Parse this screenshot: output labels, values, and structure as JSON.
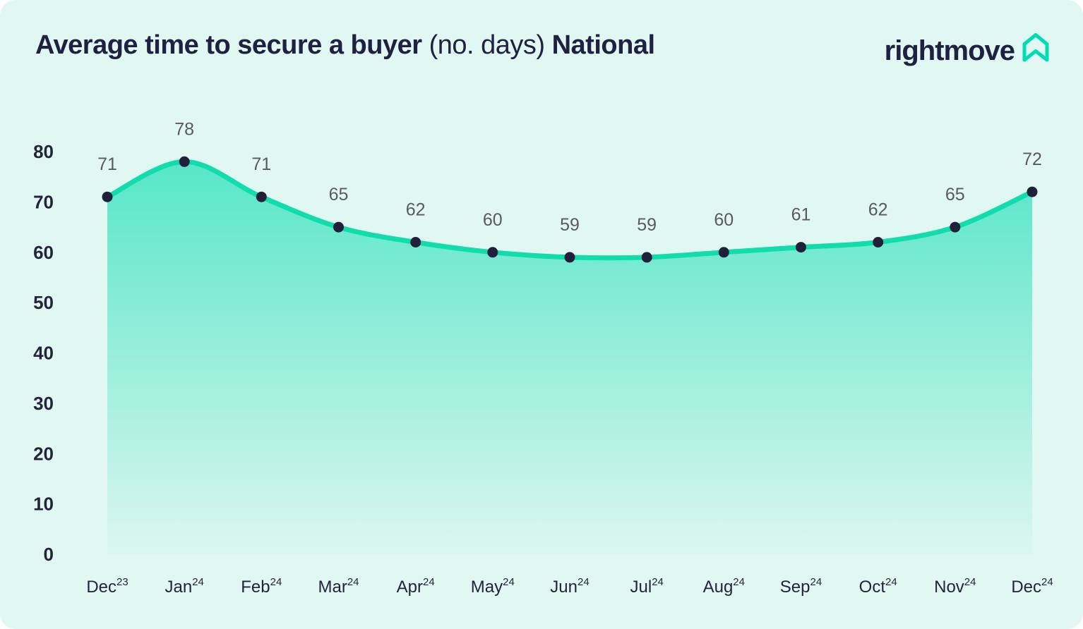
{
  "header": {
    "title_main": "Average time to secure a buyer",
    "title_sub": "(no. days)",
    "title_region": "National",
    "logo_text": "rightmove",
    "logo_icon": "home-icon"
  },
  "colors": {
    "card_bg": "#e0f8f1",
    "page_bg": "#ffffff",
    "line": "#11dcab",
    "area_top": "#53e6c6",
    "area_bottom": "#dcf6ef",
    "dot": "#20203a",
    "title": "#1f2142",
    "axis_text": "#232339",
    "value_label": "#5a5a5c",
    "logo_teal": "#00dcb4"
  },
  "chart_data": {
    "type": "area",
    "title": "Average time to secure a buyer (no. days) National",
    "categories": [
      {
        "month": "Dec",
        "year": "23"
      },
      {
        "month": "Jan",
        "year": "24"
      },
      {
        "month": "Feb",
        "year": "24"
      },
      {
        "month": "Mar",
        "year": "24"
      },
      {
        "month": "Apr",
        "year": "24"
      },
      {
        "month": "May",
        "year": "24"
      },
      {
        "month": "Jun",
        "year": "24"
      },
      {
        "month": "Jul",
        "year": "24"
      },
      {
        "month": "Aug",
        "year": "24"
      },
      {
        "month": "Sep",
        "year": "24"
      },
      {
        "month": "Oct",
        "year": "24"
      },
      {
        "month": "Nov",
        "year": "24"
      },
      {
        "month": "Dec",
        "year": "24"
      }
    ],
    "values": [
      71,
      78,
      71,
      65,
      62,
      60,
      59,
      59,
      60,
      61,
      62,
      65,
      72
    ],
    "xlabel": "",
    "ylabel": "",
    "ylim": [
      0,
      80
    ],
    "yticks": [
      0,
      10,
      20,
      30,
      40,
      50,
      60,
      70,
      80
    ],
    "grid": false,
    "legend": false,
    "value_labels_shown": true
  }
}
